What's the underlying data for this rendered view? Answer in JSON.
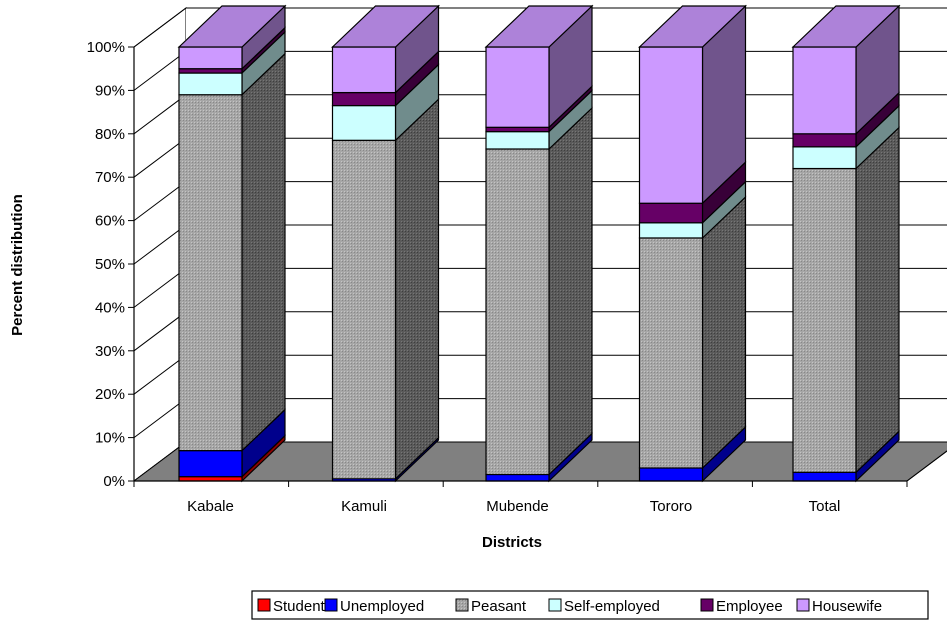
{
  "chart_data": {
    "type": "bar",
    "stacked": true,
    "percent_stacked": true,
    "three_d": true,
    "title": "",
    "xlabel": "Districts",
    "ylabel": "Percent distribution",
    "ylim": [
      0,
      100
    ],
    "y_ticks": [
      "0%",
      "10%",
      "20%",
      "30%",
      "40%",
      "50%",
      "60%",
      "70%",
      "80%",
      "90%",
      "100%"
    ],
    "grid": true,
    "legend_position": "bottom",
    "categories": [
      "Kabale",
      "Kamuli",
      "Mubende",
      "Tororo",
      "Total"
    ],
    "series": [
      {
        "name": "Student",
        "color": "#ff0000",
        "values": [
          1,
          0,
          0,
          0,
          0
        ]
      },
      {
        "name": "Unemployed",
        "color": "#0000ff",
        "values": [
          6,
          0.5,
          1.5,
          3,
          2
        ]
      },
      {
        "name": "Peasant",
        "color": "#a6a6a6",
        "values": [
          82,
          78,
          75,
          53,
          70
        ]
      },
      {
        "name": "Self-employed",
        "color": "#ccffff",
        "values": [
          5,
          8,
          4,
          3.5,
          5
        ]
      },
      {
        "name": "Employee",
        "color": "#660066",
        "values": [
          1,
          3,
          1,
          4.5,
          3
        ]
      },
      {
        "name": "Housewife",
        "color": "#cc99ff",
        "values": [
          5,
          10.5,
          18.5,
          36,
          20
        ]
      }
    ]
  }
}
